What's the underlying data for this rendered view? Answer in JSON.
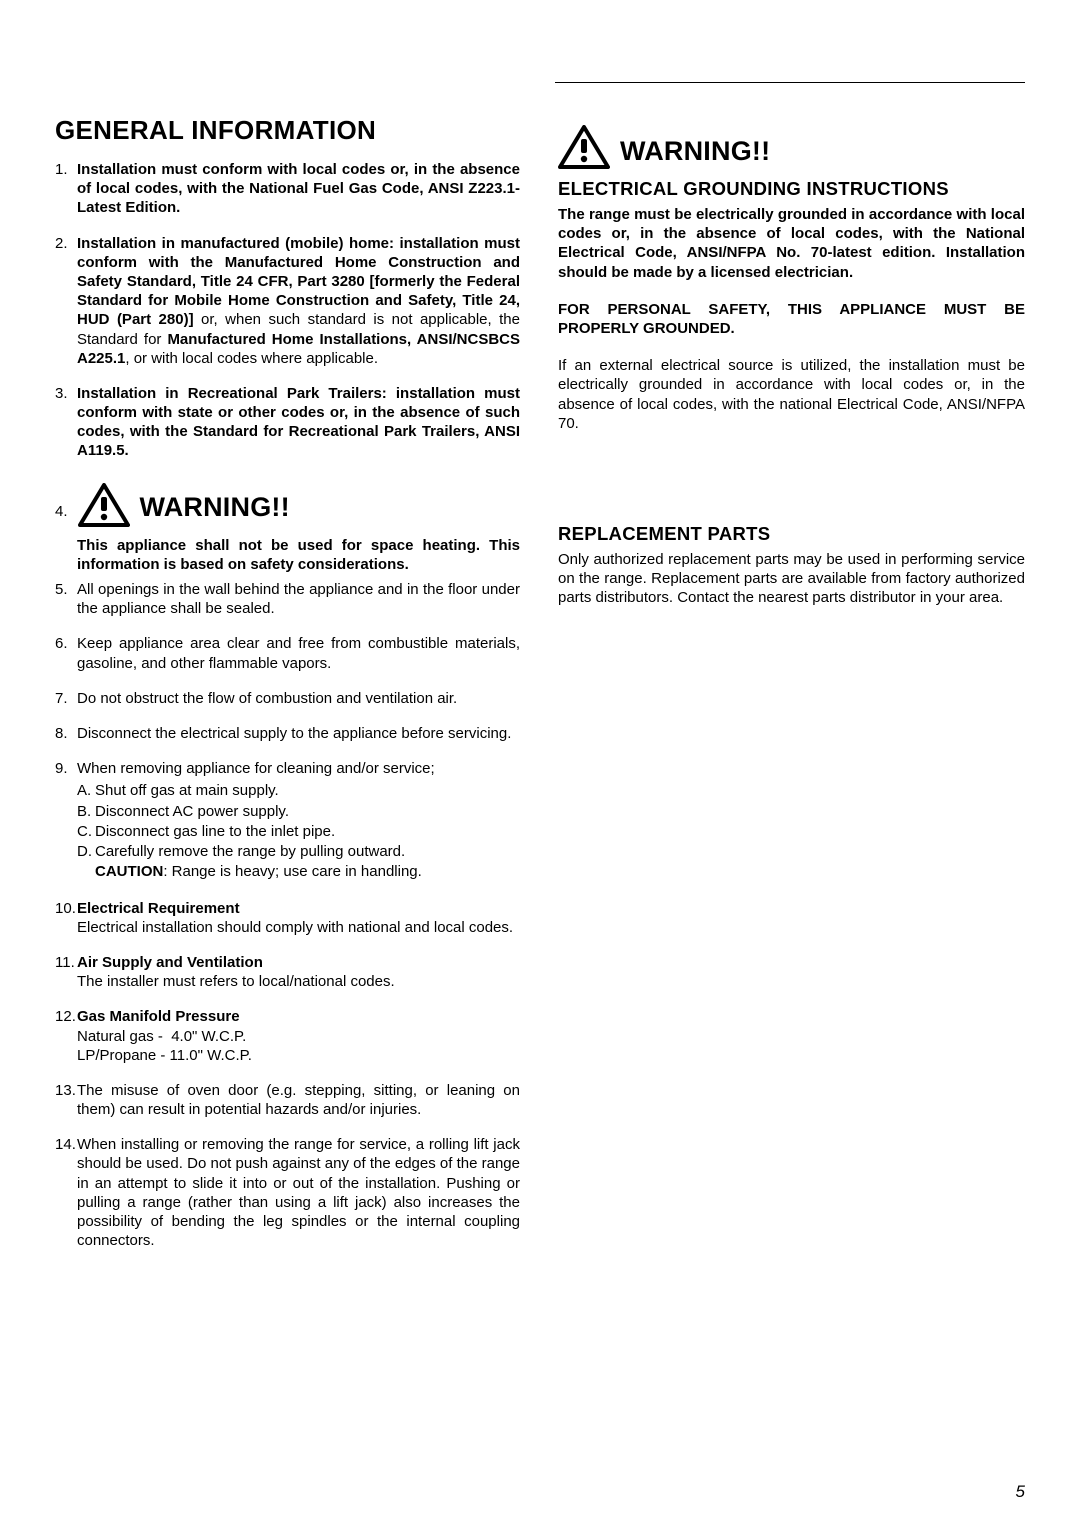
{
  "page_number": "5",
  "left": {
    "heading": "GENERAL INFORMATION",
    "items": [
      {
        "html": "<b>Installation must conform with local codes or, in the absence of local codes, with the National Fuel Gas Code, ANSI Z223.1-Latest Edition.</b>"
      },
      {
        "html": "<b>Installation in manufactured (mobile) home: installation must conform with the Manufactured Home Construction and Safety Standard, Title 24 CFR, Part 3280 [formerly the Federal Standard for Mobile Home Construction and Safety, Title 24, HUD (Part 280)]</b> or, when such standard is not applicable, the Standard for <b>Manufactured Home Installations, ANSI/NCSBCS A225.1</b>, or with local codes where applicable."
      },
      {
        "html": "<b>Installation in Recreational Park Trailers: installation must conform with state or other codes or, in the absence of such codes, with the Standard for Recreational Park Trailers, ANSI A119.5.</b>"
      },
      {
        "warning": true,
        "num": "4.",
        "label": "WARNING!!",
        "text": "<b>This appliance shall not be used for space heating. This information is based on safety considerations.</b>"
      },
      {
        "html": "All openings in the wall behind the appliance and in the floor under the appliance shall be sealed."
      },
      {
        "html": "Keep appliance area clear and free from combustible materials, gasoline, and other flammable vapors."
      },
      {
        "html": "Do not obstruct the flow of combustion and ventilation air."
      },
      {
        "html": "Disconnect the electrical supply to the appliance before servicing."
      },
      {
        "html": "When removing appliance for cleaning and/or service;",
        "sub": [
          {
            "l": "A.",
            "t": "Shut off gas at main supply."
          },
          {
            "l": "B.",
            "t": "Disconnect AC power supply."
          },
          {
            "l": "C.",
            "t": "Disconnect gas line to the inlet pipe."
          },
          {
            "l": "D.",
            "t": "Carefully remove the range by pulling outward."
          },
          {
            "l": "",
            "t": "<b>CAUTION</b>: Range is heavy; use care in handling."
          }
        ]
      },
      {
        "html": "<b>Electrical Requirement</b><br>Electrical installation should comply with national and local codes."
      },
      {
        "html": "<b>Air Supply and Ventilation</b><br>The installer must refers to local/national codes."
      },
      {
        "html": "<b>Gas Manifold Pressure</b><br>Natural gas - &nbsp;4.0\" W.C.P.<br>LP/Propane - 11.0\" W.C.P."
      },
      {
        "html": "The misuse of oven door (e.g. stepping, sitting, or leaning on them) can result in potential hazards and/or injuries."
      },
      {
        "html": "When installing or removing the range for service, a rolling lift jack should be used. Do not push against any of the edges of the range in an attempt to slide it into or out of the installation. Pushing or pulling a range (rather than using a lift jack) also increases the possibility of bending the leg spindles or the internal coupling connectors."
      }
    ]
  },
  "right": {
    "warning_label": "WARNING!!",
    "heading": "ELECTRICAL GROUNDING INSTRUCTIONS",
    "p1": "The range must be electrically grounded in accordance with local codes or, in the absence of local codes, with the National Electrical Code, ANSI/NFPA No. 70-latest edition. Installation should be made by a licensed electrician.",
    "p2": "FOR PERSONAL SAFETY, THIS APPLIANCE MUST BE PROPERLY GROUNDED.",
    "p3": "If an external electrical source is utilized, the installation must be electrically grounded in accordance with local codes or, in the absence of local codes, with the national Electrical Code, ANSI/NFPA 70.",
    "heading2": "REPLACEMENT PARTS",
    "p4": "Only authorized replacement parts may be used in performing service on the range. Replacement parts are available from factory authorized parts distributors. Contact the nearest parts distributor in your area."
  }
}
